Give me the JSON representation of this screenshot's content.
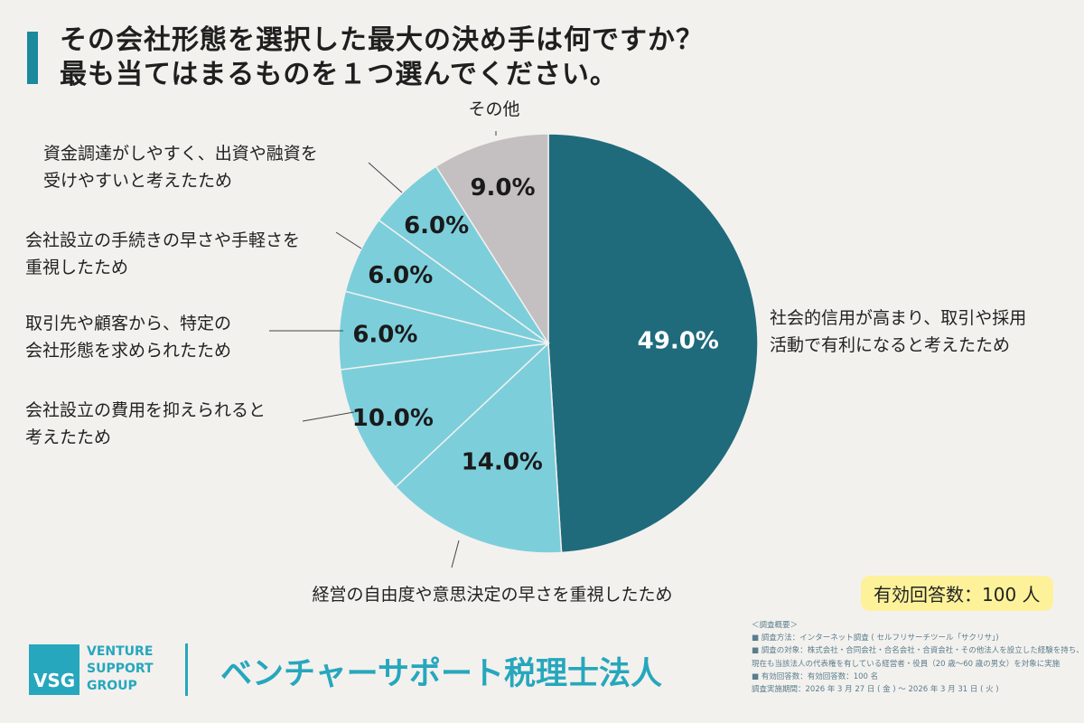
{
  "title": {
    "line1": "その会社形態を選択した最大の決め手は何ですか？",
    "line2": "最も当てはまるものを１つ選んでください。"
  },
  "chart_data": {
    "type": "pie",
    "unit": "%",
    "slices": [
      {
        "label_lines": [
          "社会的信用が高まり、取引や採用",
          "活動で有利になると考えたため"
        ],
        "value": 49.0,
        "display": "49.0%",
        "color": "#1f6b7c"
      },
      {
        "label_lines": [
          "経営の自由度や意思決定の早さを重視したため"
        ],
        "value": 14.0,
        "display": "14.0%",
        "color": "#7dcedb"
      },
      {
        "label_lines": [
          "会社設立の費用を抑えられると",
          "考えたため"
        ],
        "value": 10.0,
        "display": "10.0%",
        "color": "#7dcedb"
      },
      {
        "label_lines": [
          "取引先や顧客から、特定の",
          "会社形態を求められたため"
        ],
        "value": 6.0,
        "display": "6.0%",
        "color": "#7dcedb"
      },
      {
        "label_lines": [
          "会社設立の手続きの早さや手軽さを",
          "重視したため"
        ],
        "value": 6.0,
        "display": "6.0%",
        "color": "#7dcedb"
      },
      {
        "label_lines": [
          "資金調達がしやすく、出資や融資を",
          "受けやすいと考えたため"
        ],
        "value": 6.0,
        "display": "6.0%",
        "color": "#7dcedb"
      },
      {
        "label_lines": [
          "その他"
        ],
        "value": 9.0,
        "display": "9.0%",
        "color": "#c4bfc0"
      }
    ]
  },
  "respondents": "有効回答数：100 人",
  "notes": [
    "＜調査概要＞",
    "■ 調査方法：インターネット調査 ( セルフリサーチツール「サクリサ」)",
    "■ 調査の対象：株式会社・合同会社・合名会社・合資会社・その他法人を設立した経験を持ち、",
    "現在も当該法人の代表権を有している経営者・役員（20 歳～60 歳の男女）を対象に実施",
    "■ 有効回答数：有効回答数：100 名",
    "調査実施期間：2026 年 3 月 27 日 ( 金 ) ～ 2026 年 3 月 31 日 ( 火 )"
  ],
  "logo": {
    "abbr": "VSG",
    "lines": [
      "VENTURE",
      "SUPPORT",
      "GROUP"
    ]
  },
  "company": "ベンチャーサポート税理士法人"
}
